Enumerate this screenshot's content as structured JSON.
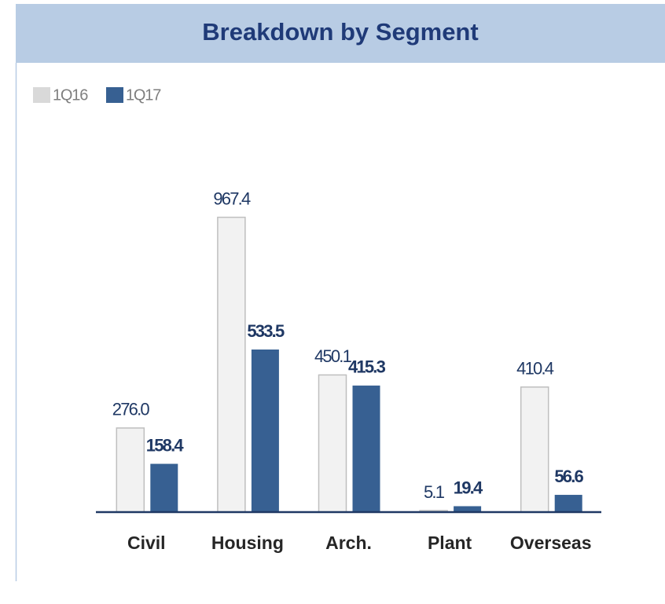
{
  "chart_data": {
    "type": "bar",
    "title": "Breakdown by Segment",
    "categories": [
      "Civil",
      "Housing",
      "Arch.",
      "Plant",
      "Overseas"
    ],
    "series": [
      {
        "name": "1Q16",
        "color": "#f2f2f2",
        "values": [
          276.0,
          967.4,
          450.1,
          5.1,
          410.4
        ],
        "value_labels": [
          "276.0",
          "967.4",
          "450.1",
          "5.1",
          "410.4"
        ]
      },
      {
        "name": "1Q17",
        "color": "#376092",
        "values": [
          158.4,
          533.5,
          415.3,
          19.4,
          56.6
        ],
        "value_labels": [
          "158.4",
          "533.5",
          "415.3",
          "19.4",
          "56.6"
        ]
      }
    ],
    "ylim": [
      0,
      1000
    ],
    "grid": false,
    "legend": "top-left"
  }
}
